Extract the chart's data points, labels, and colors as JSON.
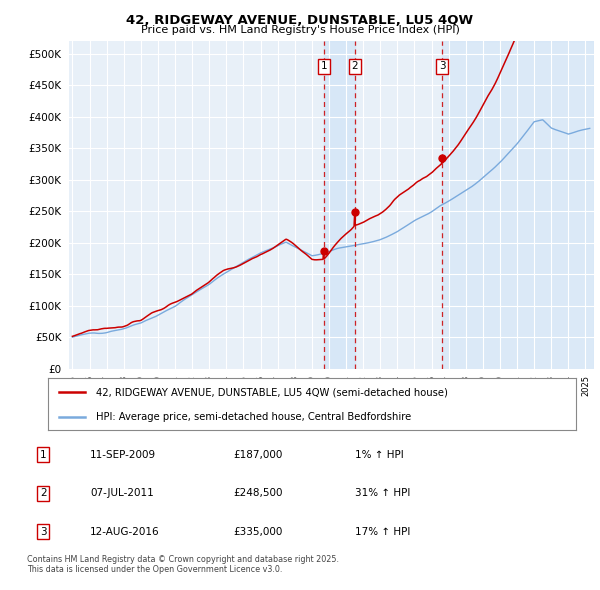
{
  "title": "42, RIDGEWAY AVENUE, DUNSTABLE, LU5 4QW",
  "subtitle": "Price paid vs. HM Land Registry's House Price Index (HPI)",
  "ytick_values": [
    0,
    50000,
    100000,
    150000,
    200000,
    250000,
    300000,
    350000,
    400000,
    450000,
    500000
  ],
  "xlim_start": 1994.8,
  "xlim_end": 2025.5,
  "ylim": [
    0,
    520000
  ],
  "purchase_dates": [
    2009.69,
    2011.52,
    2016.62
  ],
  "purchase_prices": [
    187000,
    248500,
    335000
  ],
  "purchase_labels": [
    "1",
    "2",
    "3"
  ],
  "legend_line1": "42, RIDGEWAY AVENUE, DUNSTABLE, LU5 4QW (semi-detached house)",
  "legend_line2": "HPI: Average price, semi-detached house, Central Bedfordshire",
  "table_rows": [
    [
      "1",
      "11-SEP-2009",
      "£187,000",
      "1% ↑ HPI"
    ],
    [
      "2",
      "07-JUL-2011",
      "£248,500",
      "31% ↑ HPI"
    ],
    [
      "3",
      "12-AUG-2016",
      "£335,000",
      "17% ↑ HPI"
    ]
  ],
  "footnote": "Contains HM Land Registry data © Crown copyright and database right 2025.\nThis data is licensed under the Open Government Licence v3.0.",
  "red_color": "#cc0000",
  "blue_color": "#7aaadd",
  "background_chart": "#e8f0f8",
  "grid_color": "#ffffff",
  "shade_color": "#d0e4f7"
}
